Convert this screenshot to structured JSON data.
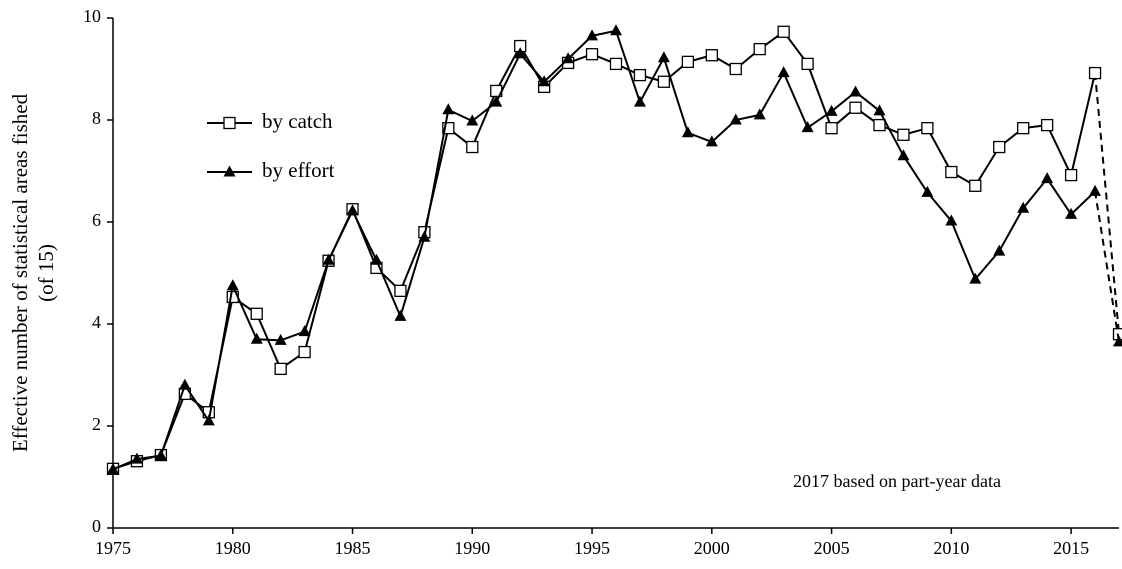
{
  "chart_data": {
    "type": "line",
    "y_label": [
      "Effective number of statistical areas fished",
      "(of 15)"
    ],
    "annotation": "2017 based on part-year data",
    "x": [
      1975,
      1976,
      1977,
      1978,
      1979,
      1980,
      1981,
      1982,
      1983,
      1984,
      1985,
      1986,
      1987,
      1988,
      1989,
      1990,
      1991,
      1992,
      1993,
      1994,
      1995,
      1996,
      1997,
      1998,
      1999,
      2000,
      2001,
      2002,
      2003,
      2004,
      2005,
      2006,
      2007,
      2008,
      2009,
      2010,
      2011,
      2012,
      2013,
      2014,
      2015,
      2016,
      2017
    ],
    "series": [
      {
        "name": "by catch",
        "color": "#000000",
        "marker": "square",
        "values": [
          1.16,
          1.31,
          1.43,
          2.63,
          2.27,
          4.53,
          4.2,
          3.12,
          3.45,
          5.24,
          6.25,
          5.1,
          4.65,
          5.8,
          7.84,
          7.47,
          8.57,
          9.45,
          8.65,
          9.12,
          9.29,
          9.1,
          8.88,
          8.75,
          9.14,
          9.27,
          9.0,
          9.39,
          9.73,
          9.1,
          7.84,
          8.24,
          7.9,
          7.71,
          7.84,
          6.98,
          6.71,
          7.47,
          7.84,
          7.9,
          6.92,
          8.92,
          3.8
        ]
      },
      {
        "name": "by effort",
        "color": "#000000",
        "marker": "triangle",
        "values": [
          1.15,
          1.35,
          1.42,
          2.8,
          2.1,
          4.75,
          3.7,
          3.68,
          3.85,
          5.25,
          6.22,
          5.25,
          4.15,
          5.7,
          8.2,
          7.98,
          8.35,
          9.3,
          8.75,
          9.2,
          9.65,
          9.75,
          8.35,
          9.22,
          7.75,
          7.57,
          8.0,
          8.1,
          8.93,
          7.85,
          8.17,
          8.55,
          8.18,
          7.3,
          6.58,
          6.02,
          4.88,
          5.43,
          6.27,
          6.85,
          6.15,
          6.6,
          3.65
        ]
      }
    ],
    "xlim": [
      1975,
      2017
    ],
    "xticks": [
      1975,
      1980,
      1985,
      1990,
      1995,
      2000,
      2005,
      2010,
      2015
    ],
    "ylim": [
      0,
      10
    ],
    "yticks": [
      0,
      2,
      4,
      6,
      8,
      10
    ],
    "legend": "upper left",
    "grid": false
  }
}
